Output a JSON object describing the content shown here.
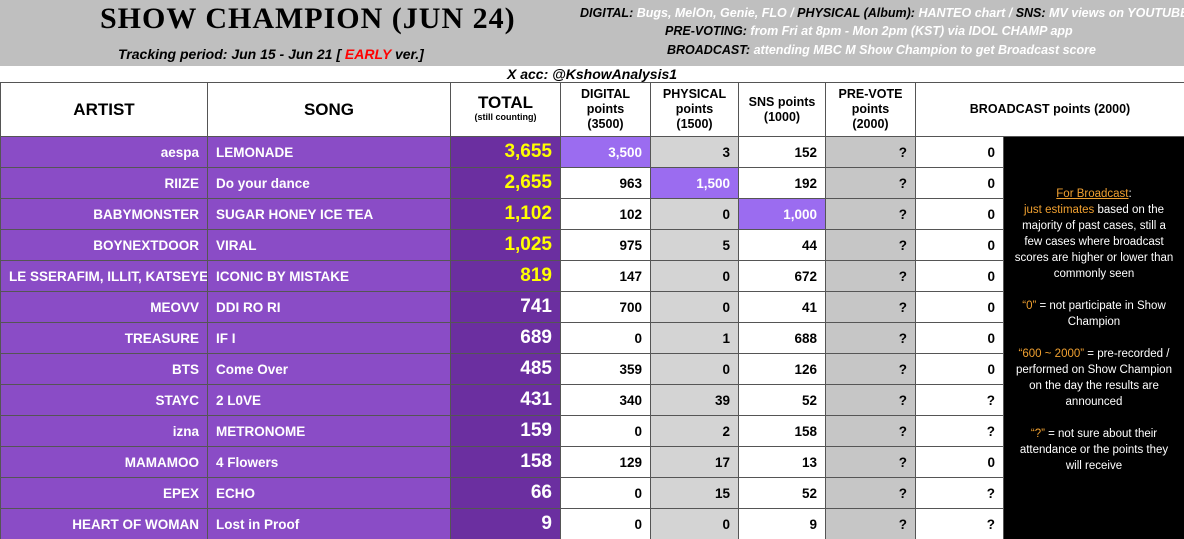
{
  "header": {
    "title": "SHOW CHAMPION (JUN 24)",
    "subtitle": [
      {
        "text": "Tracking period: Jun 15 - Jun 21 [ ",
        "color": "#000000"
      },
      {
        "text": "EARLY",
        "color": "#ff0000"
      },
      {
        "text": " ver.]",
        "color": "#000000"
      }
    ],
    "notes": [
      [
        {
          "text": "DIGITAL: ",
          "color": "#000000"
        },
        {
          "text": "Bugs, MelOn, Genie, FLO / ",
          "color": "#ffffff"
        },
        {
          "text": "PHYSICAL (Album): ",
          "color": "#000000"
        },
        {
          "text": "HANTEO chart / ",
          "color": "#ffffff"
        },
        {
          "text": "SNS: ",
          "color": "#000000"
        },
        {
          "text": "MV views on YOUTUBE",
          "color": "#ffffff"
        }
      ],
      [
        {
          "text": "PRE-VOTING: ",
          "color": "#000000"
        },
        {
          "text": "from Fri at 8pm - Mon 2pm (KST) via IDOL CHAMP app",
          "color": "#ffffff"
        }
      ],
      [
        {
          "text": "BROADCAST: ",
          "color": "#000000"
        },
        {
          "text": "attending MBC M Show Champion to get Broadcast score",
          "color": "#ffffff"
        }
      ]
    ],
    "account": "X acc: @KshowAnalysis1"
  },
  "table": {
    "columns": {
      "artist": [
        "ARTIST"
      ],
      "song": [
        "SONG"
      ],
      "total": [
        "TOTAL",
        "(still counting)"
      ],
      "digital": [
        "DIGITAL",
        "points",
        "(3500)"
      ],
      "physical": [
        "PHYSICAL",
        "points",
        "(1500)"
      ],
      "sns": [
        "SNS points",
        "(1000)"
      ],
      "prevote": [
        "PRE-VOTE",
        "points",
        "(2000)"
      ],
      "broadcast": [
        "BROADCAST points (2000)"
      ]
    },
    "rows": [
      {
        "artist": "aespa",
        "song": "LEMONADE",
        "total": "3,655",
        "digital": "3,500",
        "physical": "3",
        "sns": "152",
        "prevote": "?",
        "broadcast": "0",
        "total_color": "#ffff00",
        "highlight": "digital"
      },
      {
        "artist": "RIIZE",
        "song": "Do your dance",
        "total": "2,655",
        "digital": "963",
        "physical": "1,500",
        "sns": "192",
        "prevote": "?",
        "broadcast": "0",
        "total_color": "#ffff00",
        "highlight": "physical"
      },
      {
        "artist": "BABYMONSTER",
        "song": "SUGAR HONEY ICE TEA",
        "total": "1,102",
        "digital": "102",
        "physical": "0",
        "sns": "1,000",
        "prevote": "?",
        "broadcast": "0",
        "total_color": "#ffff00",
        "highlight": "sns"
      },
      {
        "artist": "BOYNEXTDOOR",
        "song": "VIRAL",
        "total": "1,025",
        "digital": "975",
        "physical": "5",
        "sns": "44",
        "prevote": "?",
        "broadcast": "0",
        "total_color": "#ffff00"
      },
      {
        "artist": "LE SSERAFIM, ILLIT, KATSEYE",
        "song": "ICONIC BY MISTAKE",
        "total": "819",
        "digital": "147",
        "physical": "0",
        "sns": "672",
        "prevote": "?",
        "broadcast": "0",
        "total_color": "#ffff00"
      },
      {
        "artist": "MEOVV",
        "song": "DDI RO RI",
        "total": "741",
        "digital": "700",
        "physical": "0",
        "sns": "41",
        "prevote": "?",
        "broadcast": "0",
        "total_color": "#ffffff"
      },
      {
        "artist": "TREASURE",
        "song": "IF I",
        "total": "689",
        "digital": "0",
        "physical": "1",
        "sns": "688",
        "prevote": "?",
        "broadcast": "0",
        "total_color": "#ffffff"
      },
      {
        "artist": "BTS",
        "song": "Come Over",
        "total": "485",
        "digital": "359",
        "physical": "0",
        "sns": "126",
        "prevote": "?",
        "broadcast": "0",
        "total_color": "#ffffff"
      },
      {
        "artist": "STAYC",
        "song": "2 L0VE",
        "total": "431",
        "digital": "340",
        "physical": "39",
        "sns": "52",
        "prevote": "?",
        "broadcast": "?",
        "total_color": "#ffffff"
      },
      {
        "artist": "izna",
        "song": "METRONOME",
        "total": "159",
        "digital": "0",
        "physical": "2",
        "sns": "158",
        "prevote": "?",
        "broadcast": "?",
        "total_color": "#ffffff"
      },
      {
        "artist": "MAMAMOO",
        "song": "4 Flowers",
        "total": "158",
        "digital": "129",
        "physical": "17",
        "sns": "13",
        "prevote": "?",
        "broadcast": "0",
        "total_color": "#ffffff"
      },
      {
        "artist": "EPEX",
        "song": "ECHO",
        "total": "66",
        "digital": "0",
        "physical": "15",
        "sns": "52",
        "prevote": "?",
        "broadcast": "?",
        "total_color": "#ffffff"
      },
      {
        "artist": "HEART OF WOMAN",
        "song": "Lost in Proof",
        "total": "9",
        "digital": "0",
        "physical": "0",
        "sns": "9",
        "prevote": "?",
        "broadcast": "?",
        "total_color": "#ffffff"
      }
    ],
    "note": [
      [
        {
          "text": "For Broadcast",
          "color": "#f0a030",
          "underline": true
        },
        {
          "text": ":",
          "color": "#ffffff"
        },
        {
          "text": "\njust estimates",
          "color": "#f0a030"
        },
        {
          "text": " based on the majority of past cases, still a few cases where broadcast scores are higher or lower than commonly seen",
          "color": "#ffffff"
        }
      ],
      [
        {
          "text": "“0”",
          "color": "#f0a030"
        },
        {
          "text": " = not participate in Show Champion",
          "color": "#ffffff"
        }
      ],
      [
        {
          "text": "“600 ~ 2000”",
          "color": "#f0a030"
        },
        {
          "text": " = pre-recorded / performed on Show Champion on the day the results are announced",
          "color": "#ffffff"
        }
      ],
      [
        {
          "text": "“?”",
          "color": "#f0a030"
        },
        {
          "text": " = not sure about their attendance or the points they will receive",
          "color": "#ffffff"
        }
      ]
    ]
  }
}
